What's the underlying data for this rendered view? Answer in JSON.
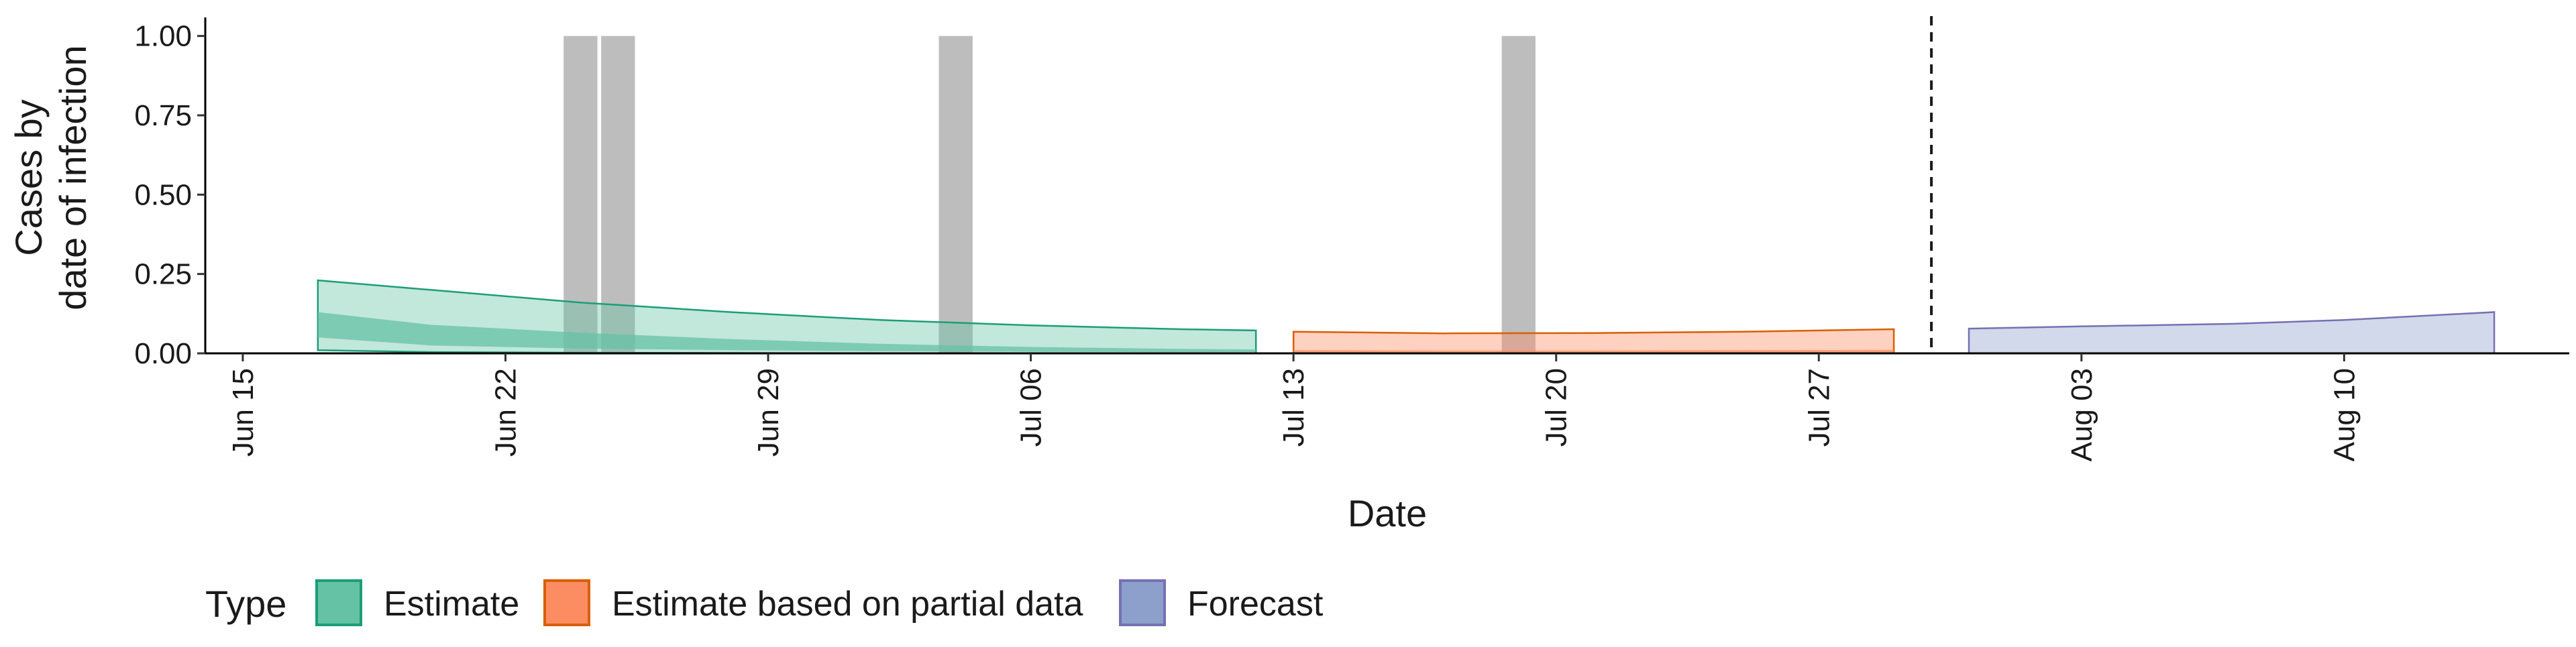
{
  "chart_data": {
    "type": "area",
    "title": "",
    "xlabel": "Date",
    "ylabel": [
      "Cases by",
      "date of infection"
    ],
    "x_date_range": [
      "2020-06-14",
      "2020-08-16"
    ],
    "xticks": [
      {
        "date": "2020-06-15",
        "label": "Jun 15"
      },
      {
        "date": "2020-06-22",
        "label": "Jun 22"
      },
      {
        "date": "2020-06-29",
        "label": "Jun 29"
      },
      {
        "date": "2020-07-06",
        "label": "Jul 06"
      },
      {
        "date": "2020-07-13",
        "label": "Jul 13"
      },
      {
        "date": "2020-07-20",
        "label": "Jul 20"
      },
      {
        "date": "2020-07-27",
        "label": "Jul 27"
      },
      {
        "date": "2020-08-03",
        "label": "Aug 03"
      },
      {
        "date": "2020-08-10",
        "label": "Aug 10"
      }
    ],
    "ylim": [
      0,
      1.05
    ],
    "yticks": [
      {
        "value": 0.0,
        "label": "0.00"
      },
      {
        "value": 0.25,
        "label": "0.25"
      },
      {
        "value": 0.5,
        "label": "0.50"
      },
      {
        "value": 0.75,
        "label": "0.75"
      },
      {
        "value": 1.0,
        "label": "1.00"
      }
    ],
    "grid": false,
    "legend_position": "bottom-left",
    "legend_title": "Type",
    "forecast_boundary_date": "2020-07-30",
    "observation_bars": [
      {
        "date": "2020-06-24",
        "value": 1.0
      },
      {
        "date": "2020-06-25",
        "value": 1.0
      },
      {
        "date": "2020-07-04",
        "value": 1.0
      },
      {
        "date": "2020-07-19",
        "value": 1.0
      }
    ],
    "bar_color": "#bdbdbd",
    "series": [
      {
        "name": "Estimate",
        "fill": "#66c2a5",
        "stroke": "#1b9e77",
        "x": [
          "2020-06-17",
          "2020-06-20",
          "2020-06-24",
          "2020-06-28",
          "2020-07-02",
          "2020-07-06",
          "2020-07-10",
          "2020-07-12"
        ],
        "outer_lower": [
          0.01,
          0.004,
          0.002,
          0.001,
          0.0005,
          0.0003,
          0.0002,
          0.0002
        ],
        "outer_upper": [
          0.23,
          0.2,
          0.16,
          0.13,
          0.105,
          0.088,
          0.076,
          0.072
        ],
        "inner_lower": [
          0.05,
          0.025,
          0.015,
          0.01,
          0.007,
          0.005,
          0.004,
          0.004
        ],
        "inner_upper": [
          0.13,
          0.09,
          0.065,
          0.045,
          0.03,
          0.02,
          0.014,
          0.012
        ]
      },
      {
        "name": "Estimate based on partial data",
        "fill": "#fc8d62",
        "stroke": "#d95f02",
        "x": [
          "2020-07-13",
          "2020-07-17",
          "2020-07-21",
          "2020-07-25",
          "2020-07-29"
        ],
        "outer_lower": [
          0.0,
          0.0,
          0.0,
          0.0,
          0.0
        ],
        "outer_upper": [
          0.068,
          0.063,
          0.064,
          0.068,
          0.076
        ],
        "inner_lower": [
          0.003,
          0.003,
          0.003,
          0.003,
          0.003
        ],
        "inner_upper": [
          0.01,
          0.009,
          0.009,
          0.01,
          0.011
        ]
      },
      {
        "name": "Forecast",
        "fill": "#8da0cb",
        "stroke": "#7570b3",
        "x": [
          "2020-07-31",
          "2020-08-03",
          "2020-08-07",
          "2020-08-10",
          "2020-08-14"
        ],
        "outer_lower": [
          0.0,
          0.0,
          0.0,
          0.0,
          0.0
        ],
        "outer_upper": [
          0.078,
          0.085,
          0.093,
          0.105,
          0.13
        ],
        "inner_lower": [
          0.0,
          0.0,
          0.0,
          0.0,
          0.0
        ],
        "inner_upper": [
          0.002,
          0.002,
          0.002,
          0.002,
          0.002
        ]
      }
    ]
  }
}
